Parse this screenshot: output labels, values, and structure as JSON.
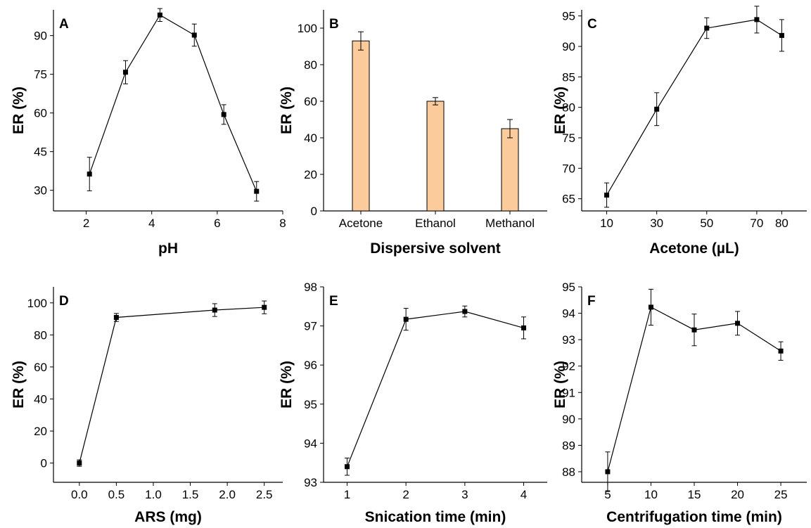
{
  "colors": {
    "line": "#000000",
    "marker": "#000000",
    "bar_fill": "#FCCB9B",
    "bar_edge": "#000000"
  },
  "chart_data": [
    {
      "id": "A",
      "panel_label": "A",
      "type": "line",
      "xlabel": "pH",
      "ylabel": "ER (%)",
      "xlim": [
        1,
        8
      ],
      "ylim": [
        22,
        100
      ],
      "xticks": [
        2,
        4,
        6,
        8
      ],
      "yticks": [
        30,
        45,
        60,
        75,
        90
      ],
      "points": [
        {
          "x": 2.1,
          "y": 36.3,
          "err": 6.5
        },
        {
          "x": 3.2,
          "y": 75.8,
          "err": 4.5
        },
        {
          "x": 4.25,
          "y": 98.0,
          "err": 2.5
        },
        {
          "x": 5.3,
          "y": 90.2,
          "err": 4.3
        },
        {
          "x": 6.2,
          "y": 59.4,
          "err": 3.8
        },
        {
          "x": 7.2,
          "y": 29.6,
          "err": 3.8
        }
      ]
    },
    {
      "id": "B",
      "panel_label": "B",
      "type": "bar",
      "xlabel": "Dispersive solvent",
      "ylabel": "ER (%)",
      "ylim": [
        0,
        110
      ],
      "yticks": [
        0,
        20,
        40,
        60,
        80,
        100
      ],
      "categories": [
        "Acetone",
        "Ethanol",
        "Methanol"
      ],
      "values": [
        93,
        60,
        45
      ],
      "errors": [
        5,
        2,
        5
      ]
    },
    {
      "id": "C",
      "panel_label": "C",
      "type": "line",
      "xlabel": "Acetone (µL)",
      "ylabel": "ER (%)",
      "xlim": [
        0,
        90
      ],
      "ylim": [
        63,
        96
      ],
      "xticks": [
        10,
        30,
        50,
        70,
        80
      ],
      "yticks": [
        65,
        70,
        75,
        80,
        85,
        90,
        95
      ],
      "points": [
        {
          "x": 10,
          "y": 65.6,
          "err": 2.0
        },
        {
          "x": 30,
          "y": 79.7,
          "err": 2.7
        },
        {
          "x": 50,
          "y": 93.0,
          "err": 1.7
        },
        {
          "x": 70,
          "y": 94.4,
          "err": 2.2
        },
        {
          "x": 80,
          "y": 91.8,
          "err": 2.6
        }
      ]
    },
    {
      "id": "D",
      "panel_label": "D",
      "type": "line",
      "xlabel": "ARS (mg)",
      "ylabel": "ER (%)",
      "xlim": [
        -0.35,
        2.75
      ],
      "ylim": [
        -12,
        110
      ],
      "xticks": [
        0.0,
        0.5,
        1.0,
        1.5,
        2.0,
        2.5
      ],
      "xticklabels": [
        "0.0",
        "0.5",
        "1.0",
        "1.5",
        "2.0",
        "2.5"
      ],
      "yticks": [
        0,
        20,
        40,
        60,
        80,
        100
      ],
      "points": [
        {
          "x": 0.0,
          "y": 0,
          "err": 2.0
        },
        {
          "x": 0.5,
          "y": 90.9,
          "err": 2.5
        },
        {
          "x": 1.83,
          "y": 95.5,
          "err": 4.0
        },
        {
          "x": 2.5,
          "y": 97.2,
          "err": 4.0
        }
      ]
    },
    {
      "id": "E",
      "panel_label": "E",
      "type": "line",
      "xlabel": "Snication time (min)",
      "ylabel": "ER (%)",
      "xlim": [
        0.6,
        4.4
      ],
      "ylim": [
        93,
        98
      ],
      "xticks": [
        1,
        2,
        3,
        4
      ],
      "yticks": [
        93,
        94,
        95,
        96,
        97,
        98
      ],
      "points": [
        {
          "x": 1,
          "y": 93.4,
          "err": 0.22
        },
        {
          "x": 2,
          "y": 97.17,
          "err": 0.28
        },
        {
          "x": 3,
          "y": 97.37,
          "err": 0.14
        },
        {
          "x": 4,
          "y": 96.95,
          "err": 0.28
        }
      ]
    },
    {
      "id": "F",
      "panel_label": "F",
      "type": "line",
      "xlabel": "Centrifugation time (min)",
      "ylabel": "ER (%)",
      "xlim": [
        2,
        28
      ],
      "ylim": [
        87.6,
        95
      ],
      "xticks": [
        5,
        10,
        15,
        20,
        25
      ],
      "yticks": [
        88,
        89,
        90,
        91,
        92,
        93,
        94,
        95
      ],
      "points": [
        {
          "x": 5,
          "y": 88.0,
          "err": 0.75
        },
        {
          "x": 10,
          "y": 94.23,
          "err": 0.68
        },
        {
          "x": 15,
          "y": 93.37,
          "err": 0.6
        },
        {
          "x": 20,
          "y": 93.62,
          "err": 0.45
        },
        {
          "x": 25,
          "y": 92.57,
          "err": 0.35
        }
      ]
    }
  ]
}
